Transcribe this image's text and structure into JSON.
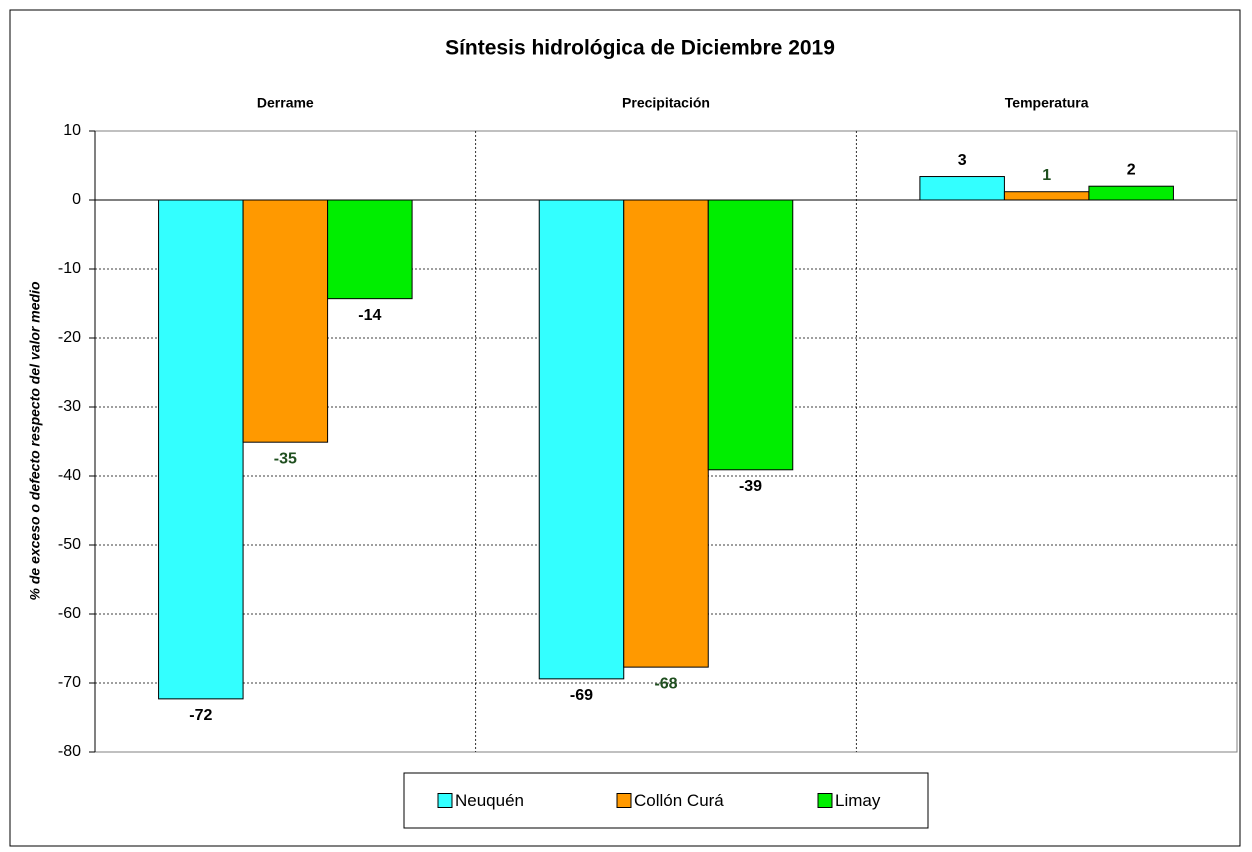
{
  "chart_data": {
    "type": "bar",
    "title": "Síntesis hidrológica de Diciembre 2019",
    "y_label": "% de exceso o defecto respecto del valor medio",
    "categories": [
      "Derrame",
      "Precipitación",
      "Temperatura"
    ],
    "series": [
      {
        "name": "Neuquén",
        "color": "#33ffff",
        "label_color": "#000000",
        "values": [
          -72.3,
          -69.4,
          3.4
        ],
        "value_labels": [
          "-72",
          "-69",
          "3"
        ]
      },
      {
        "name": "Collón Curá",
        "color": "#ff9900",
        "label_color": "#1f4f1f",
        "values": [
          -35.1,
          -67.7,
          1.2
        ],
        "value_labels": [
          "-35",
          "-68",
          "1"
        ]
      },
      {
        "name": "Limay",
        "color": "#00ee00",
        "label_color": "#000000",
        "values": [
          -14.3,
          -39.1,
          2.0
        ],
        "value_labels": [
          "-14",
          "-39",
          "2"
        ]
      }
    ],
    "ylim": [
      -80,
      10
    ],
    "yticks": [
      10,
      0,
      -10,
      -20,
      -30,
      -40,
      -50,
      -60,
      -70,
      -80
    ],
    "grid": true,
    "legend": "bottom"
  }
}
